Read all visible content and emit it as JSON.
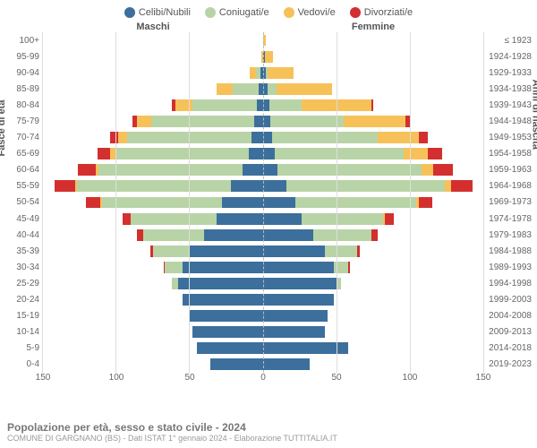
{
  "legend": [
    {
      "label": "Celibi/Nubili",
      "color": "#3c6f9c"
    },
    {
      "label": "Coniugati/e",
      "color": "#b8d4a6"
    },
    {
      "label": "Vedovi/e",
      "color": "#f7c159"
    },
    {
      "label": "Divorziati/e",
      "color": "#d32f2f"
    }
  ],
  "header_male": "Maschi",
  "header_female": "Femmine",
  "header_right": "≤ 1923",
  "age_labels": [
    "100+",
    "95-99",
    "90-94",
    "85-89",
    "80-84",
    "75-79",
    "70-74",
    "65-69",
    "60-64",
    "55-59",
    "50-54",
    "45-49",
    "40-44",
    "35-39",
    "30-34",
    "25-29",
    "20-24",
    "15-19",
    "10-14",
    "5-9",
    "0-4"
  ],
  "birth_labels": [
    "≤ 1923",
    "1924-1928",
    "1929-1933",
    "1934-1938",
    "1939-1943",
    "1944-1948",
    "1949-1953",
    "1954-1958",
    "1959-1963",
    "1964-1968",
    "1969-1973",
    "1974-1978",
    "1979-1983",
    "1984-1988",
    "1989-1993",
    "1994-1998",
    "1999-2003",
    "2004-2008",
    "2009-2013",
    "2014-2018",
    "2019-2023"
  ],
  "x_ticks": [
    150,
    100,
    50,
    0,
    50,
    100,
    150
  ],
  "x_max": 150,
  "y_label_left": "Fasce di età",
  "y_label_right": "Anni di nascita",
  "title": "Popolazione per età, sesso e stato civile - 2024",
  "subtitle": "COMUNE DI GARGNANO (BS) - Dati ISTAT 1° gennaio 2024 - Elaborazione TUTTITALIA.IT",
  "colors": {
    "single": "#3c6f9c",
    "married": "#b8d4a6",
    "widowed": "#f7c159",
    "divorced": "#d32f2f",
    "grid": "#dddddd",
    "bg": "#ffffff"
  },
  "male": [
    {
      "s": 0,
      "m": 0,
      "w": 0,
      "d": 0
    },
    {
      "s": 0,
      "m": 0,
      "w": 1,
      "d": 0
    },
    {
      "s": 2,
      "m": 3,
      "w": 4,
      "d": 0
    },
    {
      "s": 3,
      "m": 18,
      "w": 11,
      "d": 0
    },
    {
      "s": 4,
      "m": 44,
      "w": 12,
      "d": 2
    },
    {
      "s": 6,
      "m": 70,
      "w": 10,
      "d": 3
    },
    {
      "s": 8,
      "m": 85,
      "w": 6,
      "d": 5
    },
    {
      "s": 10,
      "m": 90,
      "w": 4,
      "d": 9
    },
    {
      "s": 14,
      "m": 98,
      "w": 2,
      "d": 12
    },
    {
      "s": 22,
      "m": 105,
      "w": 1,
      "d": 14
    },
    {
      "s": 28,
      "m": 82,
      "w": 1,
      "d": 10
    },
    {
      "s": 32,
      "m": 58,
      "w": 0,
      "d": 6
    },
    {
      "s": 40,
      "m": 42,
      "w": 0,
      "d": 4
    },
    {
      "s": 50,
      "m": 25,
      "w": 0,
      "d": 2
    },
    {
      "s": 55,
      "m": 12,
      "w": 0,
      "d": 1
    },
    {
      "s": 58,
      "m": 4,
      "w": 0,
      "d": 0
    },
    {
      "s": 55,
      "m": 0,
      "w": 0,
      "d": 0
    },
    {
      "s": 50,
      "m": 0,
      "w": 0,
      "d": 0
    },
    {
      "s": 48,
      "m": 0,
      "w": 0,
      "d": 0
    },
    {
      "s": 45,
      "m": 0,
      "w": 0,
      "d": 0
    },
    {
      "s": 36,
      "m": 0,
      "w": 0,
      "d": 0
    }
  ],
  "female": [
    {
      "s": 0,
      "m": 0,
      "w": 2,
      "d": 0
    },
    {
      "s": 1,
      "m": 0,
      "w": 6,
      "d": 0
    },
    {
      "s": 2,
      "m": 1,
      "w": 18,
      "d": 0
    },
    {
      "s": 3,
      "m": 6,
      "w": 38,
      "d": 0
    },
    {
      "s": 4,
      "m": 22,
      "w": 48,
      "d": 1
    },
    {
      "s": 5,
      "m": 50,
      "w": 42,
      "d": 3
    },
    {
      "s": 6,
      "m": 72,
      "w": 28,
      "d": 6
    },
    {
      "s": 8,
      "m": 88,
      "w": 16,
      "d": 10
    },
    {
      "s": 10,
      "m": 98,
      "w": 8,
      "d": 13
    },
    {
      "s": 16,
      "m": 108,
      "w": 4,
      "d": 15
    },
    {
      "s": 22,
      "m": 82,
      "w": 2,
      "d": 9
    },
    {
      "s": 26,
      "m": 56,
      "w": 1,
      "d": 6
    },
    {
      "s": 34,
      "m": 40,
      "w": 0,
      "d": 4
    },
    {
      "s": 42,
      "m": 22,
      "w": 0,
      "d": 2
    },
    {
      "s": 48,
      "m": 10,
      "w": 0,
      "d": 1
    },
    {
      "s": 50,
      "m": 3,
      "w": 0,
      "d": 0
    },
    {
      "s": 48,
      "m": 0,
      "w": 0,
      "d": 0
    },
    {
      "s": 44,
      "m": 0,
      "w": 0,
      "d": 0
    },
    {
      "s": 42,
      "m": 0,
      "w": 0,
      "d": 0
    },
    {
      "s": 58,
      "m": 0,
      "w": 0,
      "d": 0
    },
    {
      "s": 32,
      "m": 0,
      "w": 0,
      "d": 0
    }
  ]
}
